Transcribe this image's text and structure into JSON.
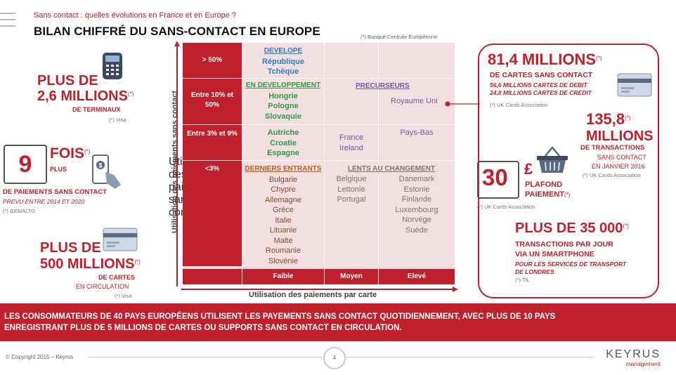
{
  "header": {
    "subtitle": "Sans contact : quelles évolutions en France et en Europe ?",
    "title": "BILAN CHIFFRÉ DU SANS-CONTACT EN EUROPE",
    "source_bce": "(*) Banque Centrale Européenne"
  },
  "left": {
    "terminals": {
      "line1": "PLUS DE",
      "line2": "2,6 MILLIONS",
      "star": "(*)",
      "line3": "DE TERMINAUX",
      "source": "(*) Visa"
    },
    "payments": {
      "number": "9",
      "fois": "FOIS",
      "star": "(*)",
      "plus": "PLUS",
      "line1": "DE PAIEMENTS SANS CONTACT",
      "line2": "PREVU ENTRE 2014 ET 2020",
      "source": "(*) GEMALTO"
    },
    "cards": {
      "line1": "PLUS DE",
      "line2": "500 MILLIONS",
      "star": "(*)",
      "line3": "DE CARTES",
      "line4": "EN CIRCULATION",
      "source": "(*) Visa"
    }
  },
  "matrix": {
    "y_axis_label": "Utilisation des paiements sans contact",
    "x_axis_label": "Utilisation des paiements par carte",
    "row_labels": [
      "> 50%",
      "Entre 10% et 50%",
      "Entre 3% et 9%",
      "<3%"
    ],
    "col_labels": [
      "Faible",
      "Moyen",
      "Elevé"
    ],
    "developpe": {
      "heading": "DEVELOPE",
      "items": [
        "République",
        "Tchèque"
      ]
    },
    "en_developpement": {
      "heading": "EN DEVELOPPEMENT",
      "items": [
        "Hongrie",
        "Pologne",
        "Slovaquie"
      ]
    },
    "precurseurs": {
      "heading": "PRECURSEURS",
      "item": "Royaume Uni"
    },
    "row3_faible": [
      "Autriche",
      "Croatie",
      "Espagne"
    ],
    "row3_moyen": [
      "France",
      "Ireland"
    ],
    "row3_eleve": [
      "Pays-Bas"
    ],
    "derniers_entrants": {
      "heading": "DERNIERS ENTRANTS",
      "items": [
        "Bulgarie",
        "Chypre",
        "Allemagne",
        "Grèce",
        "Italie",
        "Lituanie",
        "Malte",
        "Roumanie",
        "Slovénie"
      ]
    },
    "lents": {
      "heading": "LENTS AU CHANGEMENT",
      "moyen": [
        "Belgique",
        "Lettonie",
        "Portugal"
      ],
      "eleve": [
        "Danemark",
        "Estonie",
        "Finlande",
        "Luxembourg",
        "Norvège",
        "Suède"
      ]
    }
  },
  "right": {
    "uk_cards": {
      "value": "81,4 MILLIONS",
      "star": "(*)",
      "line1": "DE CARTES SANS CONTACT",
      "debit": "56,6 MILLIONS CARTES DE DEBIT",
      "credit": "24,8 MILLIONS CARTES DE CREDIT",
      "source": "(*) UK Cards Association"
    },
    "transactions": {
      "value": "135,8",
      "star": "(*)",
      "line1": "MILLIONS",
      "line2": "DE TRANSACTIONS",
      "line3": "SANS CONTACT",
      "line4": "EN JANVIER 2016",
      "source": "(*) UK Cards Association"
    },
    "plafond": {
      "value": "30",
      "currency": "£",
      "line1": "PLAFOND",
      "line2": "PAIEMENT",
      "star": "(*)",
      "source": "(*) UK Cards Association"
    },
    "smartphone": {
      "value": "PLUS DE 35 000",
      "star": "(*)",
      "line1": "TRANSACTIONS PAR JOUR",
      "line2": "VIA UN SMARTPHONE",
      "line3": "POUR LES SERVICES DE TRANSPORT",
      "line4": "DE LONDRES",
      "source": "(*) TfL"
    }
  },
  "band": {
    "line1": "LES CONSOMMATEURS DE 40 PAYS EUROPÉENS UTILISENT LES PAYEMENTS SANS CONTACT QUOTIDIENNEMENT, AVEC PLUS DE 10 PAYS",
    "line2": "ENREGISTRANT PLUS DE 5 MILLIONS DE CARTES OU SUPPORTS SANS CONTACT EN CIRCULATION."
  },
  "footer": {
    "copyright": "© Copyright 2015 – Keyrus",
    "page": "4",
    "brand": "KEYRUS",
    "brand_sub": "management"
  },
  "colors": {
    "accent": "#c0202c",
    "green": "#2e9b45",
    "blue": "#2e7fc1",
    "matrix_bg": "#f3dfe1"
  },
  "icons": [
    "payment-terminal-icon",
    "smartphone-payment-icon",
    "credit-card-icon",
    "shopping-basket-icon"
  ]
}
